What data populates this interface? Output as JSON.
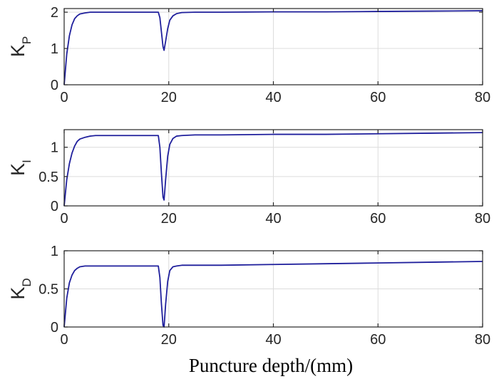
{
  "chart_data": [
    {
      "type": "line",
      "ylabel_main": "K",
      "ylabel_sub": "P",
      "xlim": [
        0,
        80
      ],
      "ylim": [
        0,
        2.1
      ],
      "xticks": [
        0,
        20,
        40,
        60,
        80
      ],
      "yticks": [
        0,
        1,
        2
      ],
      "ytick_labels": [
        "0",
        "1",
        "2"
      ],
      "grid": true,
      "series": [
        {
          "x": [
            0,
            0.5,
            1,
            1.5,
            2,
            2.5,
            3,
            4,
            5,
            6,
            8,
            10,
            12,
            14,
            16,
            18,
            18.3,
            18.6,
            18.9,
            19.1,
            19.4,
            19.8,
            20.2,
            20.8,
            21.5,
            22.5,
            25,
            30,
            40,
            50,
            60,
            70,
            80
          ],
          "y": [
            0,
            0.85,
            1.35,
            1.65,
            1.82,
            1.9,
            1.95,
            1.98,
            2.0,
            2.0,
            2.0,
            2.0,
            2.0,
            2.0,
            2.0,
            2.0,
            1.85,
            1.45,
            1.05,
            0.95,
            1.2,
            1.55,
            1.78,
            1.9,
            1.96,
            1.99,
            2.0,
            2.0,
            2.01,
            2.01,
            2.02,
            2.03,
            2.04
          ]
        }
      ]
    },
    {
      "type": "line",
      "ylabel_main": "K",
      "ylabel_sub": "I",
      "xlim": [
        0,
        80
      ],
      "ylim": [
        0,
        1.3
      ],
      "xticks": [
        0,
        20,
        40,
        60,
        80
      ],
      "yticks": [
        0,
        0.5,
        1
      ],
      "ytick_labels": [
        "0",
        "0.5",
        "1"
      ],
      "grid": true,
      "series": [
        {
          "x": [
            0,
            0.5,
            1,
            1.5,
            2,
            2.5,
            3,
            4,
            5,
            6,
            8,
            10,
            12,
            14,
            16,
            18,
            18.3,
            18.6,
            18.9,
            19.1,
            19.4,
            19.8,
            20.2,
            20.8,
            21.5,
            22.5,
            25,
            30,
            40,
            50,
            60,
            70,
            80
          ],
          "y": [
            0,
            0.45,
            0.72,
            0.9,
            1.02,
            1.1,
            1.14,
            1.17,
            1.19,
            1.2,
            1.2,
            1.2,
            1.2,
            1.2,
            1.2,
            1.2,
            1.0,
            0.55,
            0.15,
            0.1,
            0.45,
            0.85,
            1.05,
            1.15,
            1.19,
            1.2,
            1.21,
            1.21,
            1.22,
            1.22,
            1.23,
            1.24,
            1.25
          ]
        }
      ]
    },
    {
      "type": "line",
      "ylabel_main": "K",
      "ylabel_sub": "D",
      "xlim": [
        0,
        80
      ],
      "ylim": [
        0,
        1.0
      ],
      "xticks": [
        0,
        20,
        40,
        60,
        80
      ],
      "yticks": [
        0,
        0.5,
        1
      ],
      "ytick_labels": [
        "0",
        "0.5",
        "1"
      ],
      "grid": true,
      "series": [
        {
          "x": [
            0,
            0.5,
            1,
            1.5,
            2,
            2.5,
            3,
            4,
            5,
            6,
            8,
            10,
            12,
            14,
            16,
            18,
            18.3,
            18.6,
            18.9,
            19.1,
            19.4,
            19.8,
            20.2,
            20.8,
            21.5,
            22.5,
            25,
            30,
            40,
            50,
            60,
            70,
            80
          ],
          "y": [
            0,
            0.38,
            0.58,
            0.68,
            0.74,
            0.77,
            0.79,
            0.8,
            0.8,
            0.8,
            0.8,
            0.8,
            0.8,
            0.8,
            0.8,
            0.8,
            0.65,
            0.3,
            0.02,
            0.0,
            0.3,
            0.6,
            0.74,
            0.79,
            0.8,
            0.81,
            0.81,
            0.81,
            0.82,
            0.83,
            0.84,
            0.85,
            0.86
          ]
        }
      ]
    }
  ],
  "xlabel": "Puncture depth/(mm)",
  "colors": {
    "series": "#1f1f9c",
    "axis": "#262626",
    "grid": "#dcdcdc"
  }
}
